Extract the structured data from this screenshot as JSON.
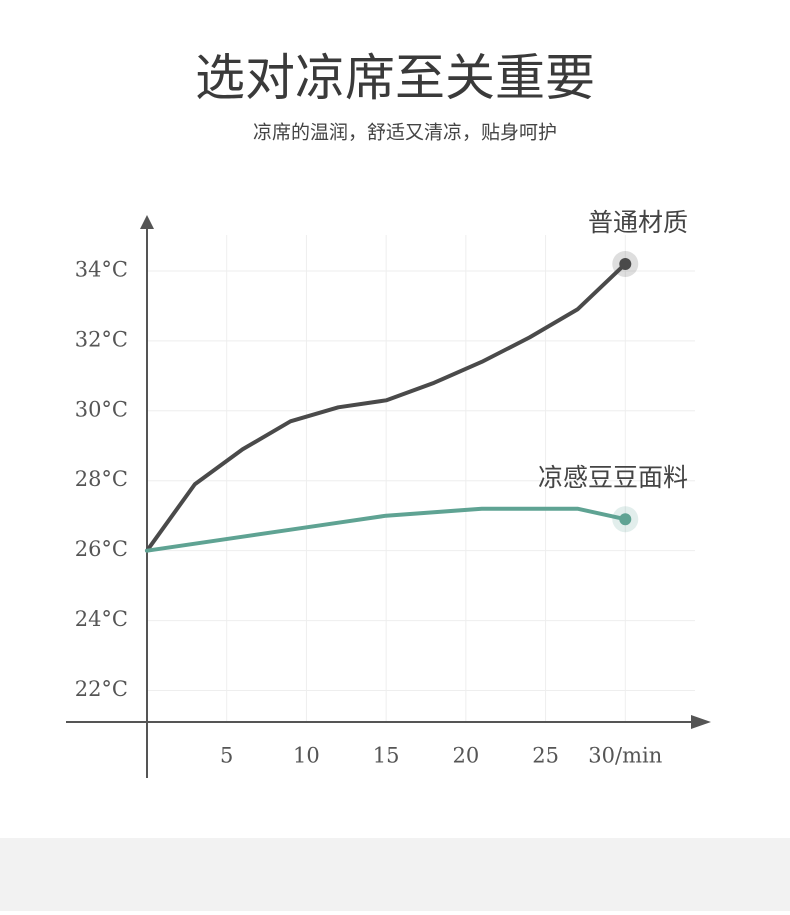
{
  "chart_data": {
    "type": "line",
    "title": "选对凉席至关重要",
    "subtitle": "凉席的温润，舒适又清凉，贴身呵护",
    "x": [
      0,
      3,
      6,
      9,
      12,
      15,
      18,
      21,
      24,
      27,
      30
    ],
    "series": [
      {
        "name": "普通材质",
        "color": "#4a4a4a",
        "values": [
          26,
          27.9,
          28.9,
          29.7,
          30.1,
          30.3,
          30.8,
          31.4,
          32.1,
          32.9,
          34.2
        ]
      },
      {
        "name": "凉感豆豆面料",
        "color": "#5fa393",
        "values": [
          26,
          26.2,
          26.4,
          26.6,
          26.8,
          27,
          27.1,
          27.2,
          27.2,
          27.2,
          26.9
        ]
      }
    ],
    "xlim": [
      0,
      35
    ],
    "ylim": [
      21.1,
      35.6
    ],
    "xticks": [
      5,
      10,
      15,
      20,
      25,
      {
        "value": 30,
        "label": "30/min"
      }
    ],
    "yticks": [
      {
        "value": 22,
        "label": "22°C"
      },
      {
        "value": 24,
        "label": "24°C"
      },
      {
        "value": 26,
        "label": "26°C"
      },
      {
        "value": 28,
        "label": "28°C"
      },
      {
        "value": 30,
        "label": "30°C"
      },
      {
        "value": 32,
        "label": "32°C"
      },
      {
        "value": 34,
        "label": "34°C"
      }
    ],
    "grid": true
  }
}
